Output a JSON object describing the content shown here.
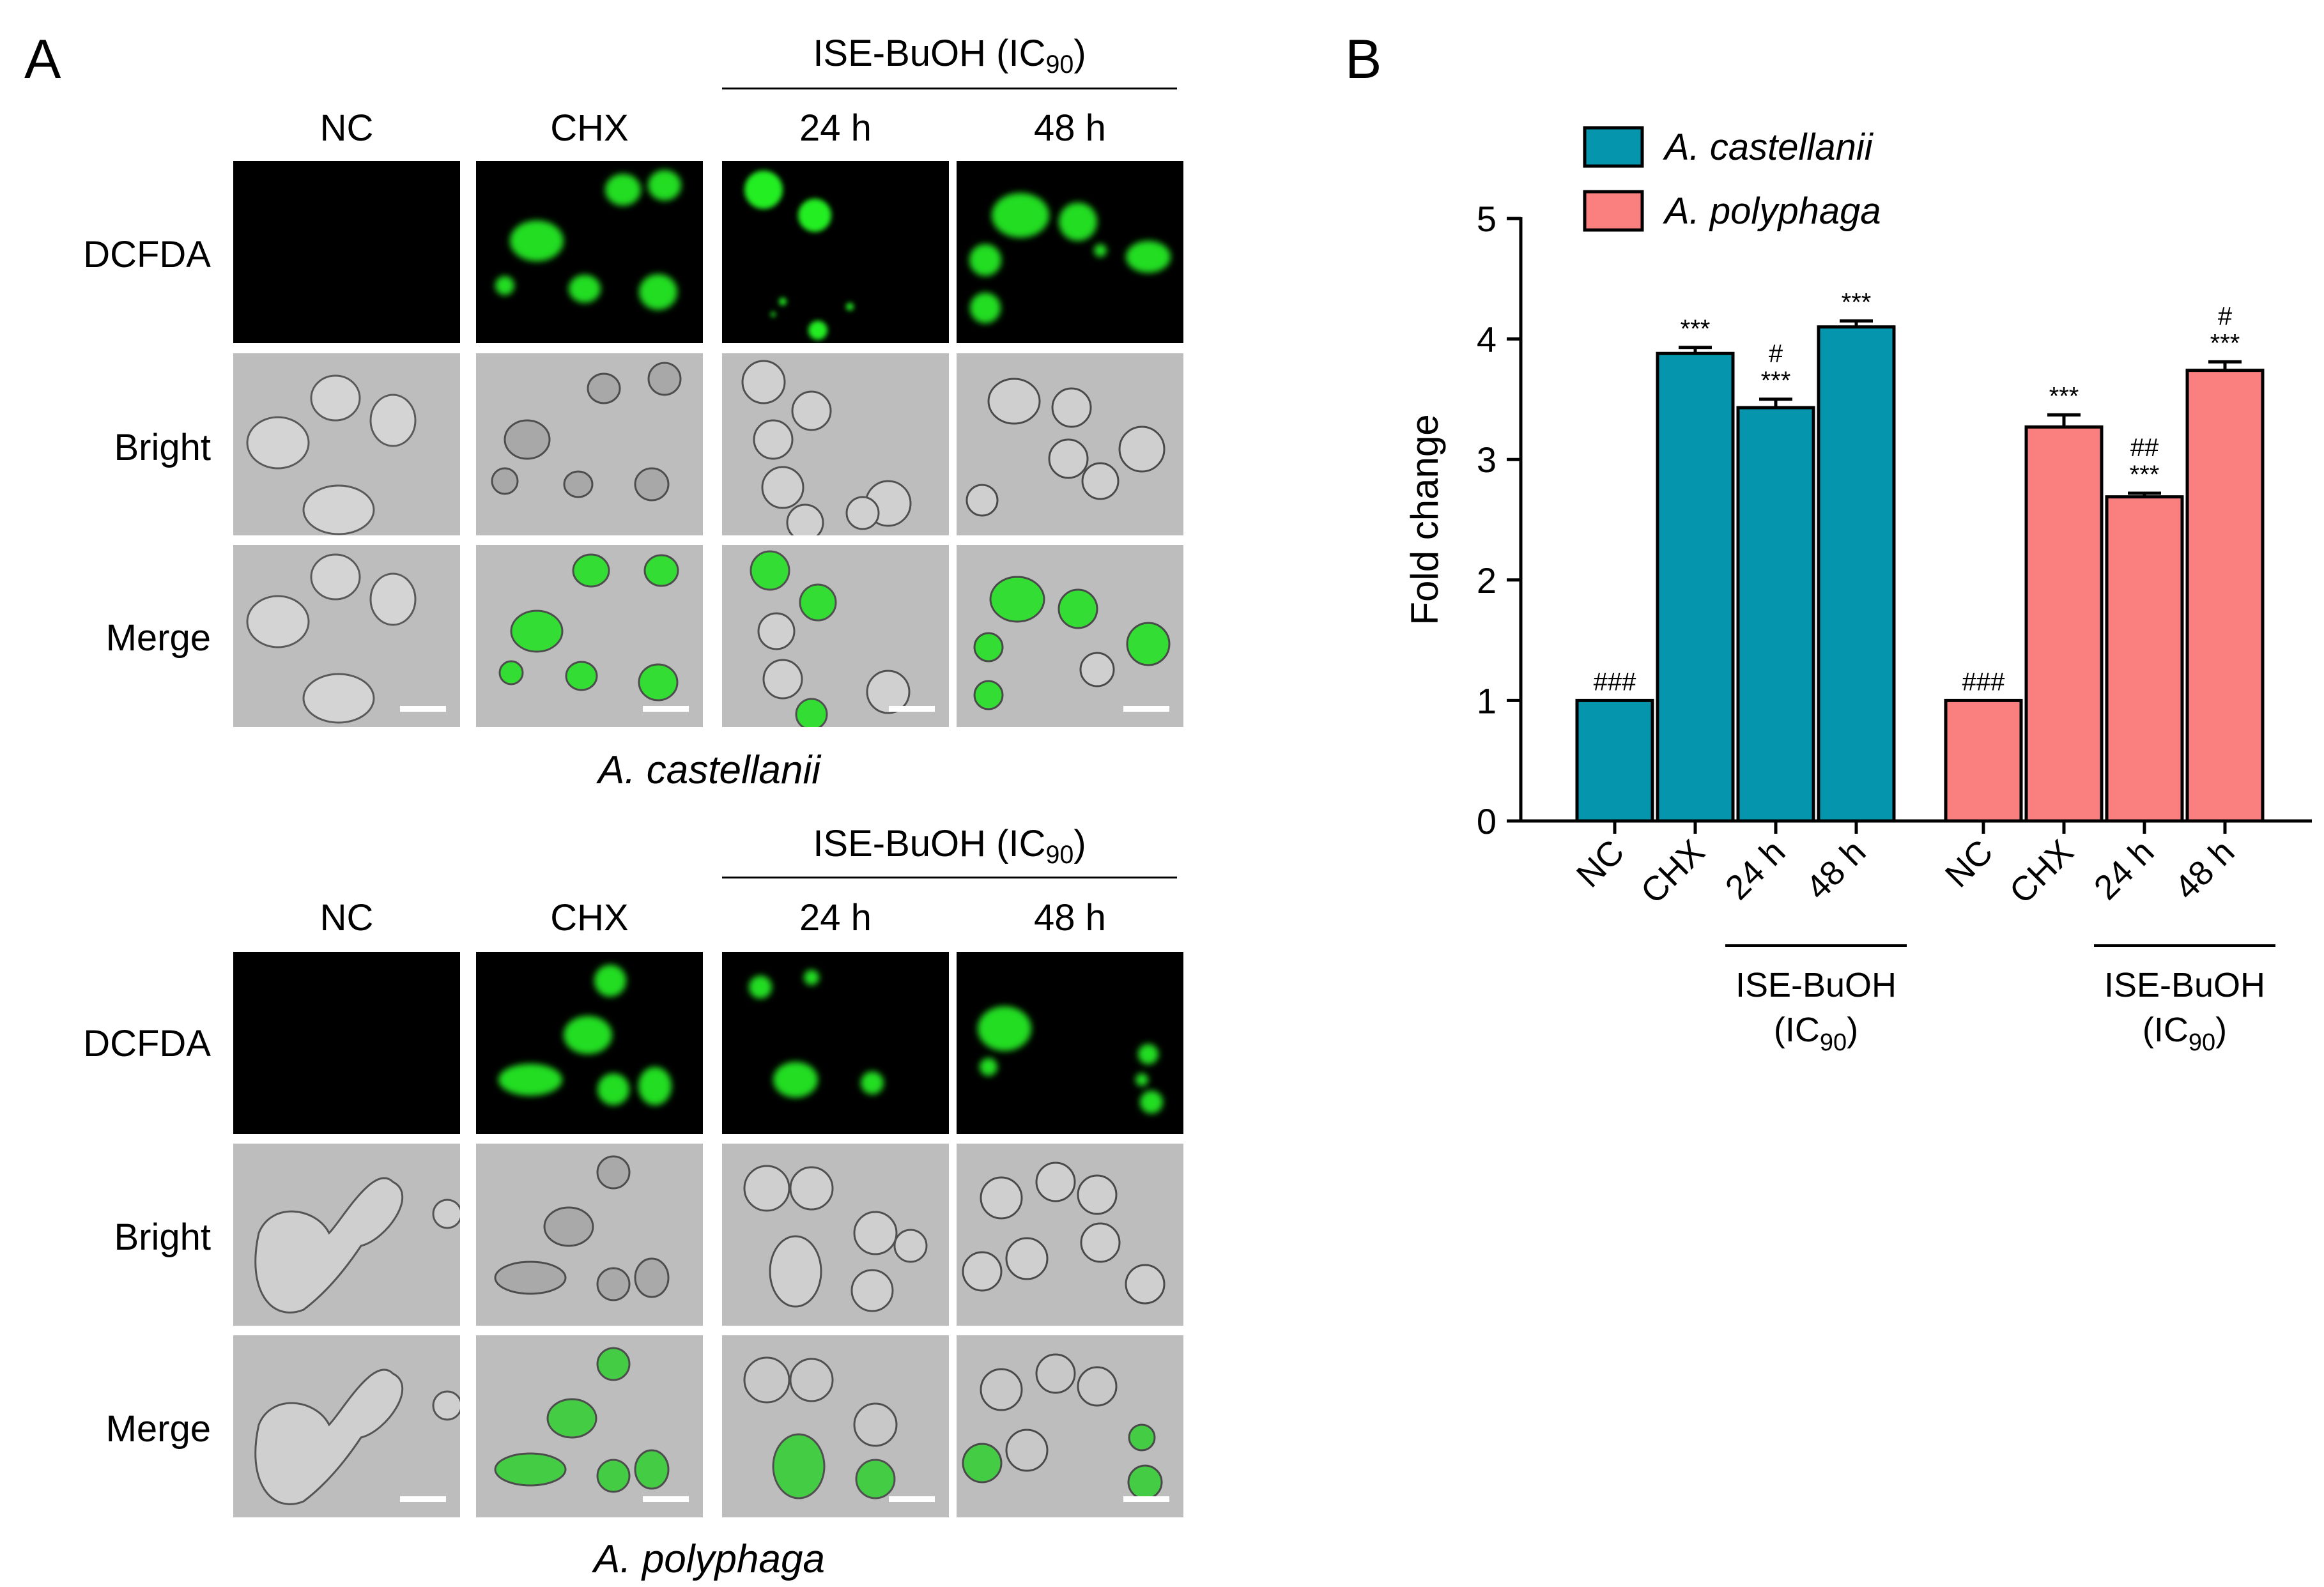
{
  "panel_labels": {
    "a": "A",
    "b": "B"
  },
  "panel_a": {
    "treatment_main": "ISE-BuOH (IC",
    "treatment_sub": "90",
    "treatment_close": ")",
    "columns": [
      "NC",
      "CHX",
      "24 h",
      "48 h"
    ],
    "rows": [
      "DCFDA",
      "Bright",
      "Merge"
    ],
    "species": [
      "A. castellanii",
      "A. polyphaga"
    ]
  },
  "chart_data": {
    "type": "bar",
    "ylabel": "Fold change",
    "ylim": [
      0,
      5
    ],
    "yticks": [
      0,
      1,
      2,
      3,
      4,
      5
    ],
    "categories": [
      "NC",
      "CHX",
      "24 h",
      "48 h"
    ],
    "group_label_main": "ISE-BuOH",
    "group_label_sub": "(IC",
    "group_label_subscript": "90",
    "group_label_close": ")",
    "legend_position": "top-left",
    "series": [
      {
        "name": "A. castellanii",
        "color": "#0596ad",
        "values": [
          1.0,
          3.88,
          3.43,
          4.1
        ],
        "errors": [
          0.0,
          0.05,
          0.07,
          0.05
        ],
        "sig_top": [
          "###",
          "***",
          "#",
          "***"
        ],
        "sig_bottom": [
          "",
          "",
          "***",
          ""
        ]
      },
      {
        "name": "A. polyphaga",
        "color": "#fa8080",
        "values": [
          1.0,
          3.27,
          2.69,
          3.74
        ],
        "errors": [
          0.0,
          0.1,
          0.03,
          0.07
        ],
        "sig_top": [
          "###",
          "***",
          "##",
          "#"
        ],
        "sig_bottom": [
          "",
          "",
          "***",
          "***"
        ]
      }
    ]
  }
}
